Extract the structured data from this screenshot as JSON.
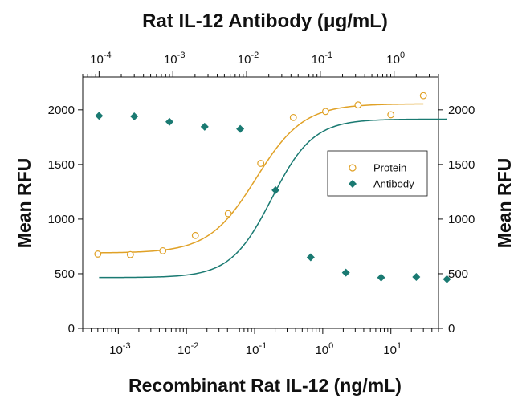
{
  "chart_data": {
    "type": "scatter",
    "title": "Rat IL-12 Antibody (μg/mL)",
    "xlabel": "Recombinant Rat IL-12 (ng/mL)",
    "ylabel": "Mean RFU",
    "ylabel_right": "Mean RFU",
    "x_scale": "log",
    "xlim": [
      0.0003,
      50
    ],
    "ylim": [
      0,
      2300
    ],
    "x2_scale": "log",
    "x2lim": [
      6e-05,
      4
    ],
    "grid": false,
    "legend_position": "right-center",
    "y_ticks": [
      0,
      500,
      1000,
      1500,
      2000
    ],
    "x_ticks": [
      {
        "value": 0.001,
        "base": "10",
        "exp": "-3"
      },
      {
        "value": 0.01,
        "base": "10",
        "exp": "-2"
      },
      {
        "value": 0.1,
        "base": "10",
        "exp": "-1"
      },
      {
        "value": 1,
        "base": "10",
        "exp": "0"
      },
      {
        "value": 10,
        "base": "10",
        "exp": "1"
      }
    ],
    "x2_ticks": [
      {
        "value": 0.0001,
        "base": "10",
        "exp": "-4"
      },
      {
        "value": 0.001,
        "base": "10",
        "exp": "-3"
      },
      {
        "value": 0.01,
        "base": "10",
        "exp": "-2"
      },
      {
        "value": 0.1,
        "base": "10",
        "exp": "-1"
      },
      {
        "value": 1,
        "base": "10",
        "exp": "0"
      }
    ],
    "series": [
      {
        "name": "Protein",
        "axis": "bottom",
        "marker": "open-circle",
        "color": "#E0A126",
        "x": [
          0.0005,
          0.0015,
          0.0045,
          0.0135,
          0.041,
          0.123,
          0.37,
          1.1,
          3.3,
          10,
          30
        ],
        "y": [
          680,
          675,
          710,
          850,
          1050,
          1510,
          1930,
          1985,
          2045,
          1955,
          2130
        ],
        "fit": {
          "bottom": 690,
          "top": 2055,
          "ec50": 0.105,
          "hill": 1.25
        }
      },
      {
        "name": "Antibody",
        "axis": "top",
        "marker": "filled-diamond",
        "color": "#1A7A72",
        "x": [
          0.0001,
          0.0003,
          0.0009,
          0.0027,
          0.0082,
          0.0247,
          0.074,
          0.222,
          0.667,
          2.0
        ],
        "y": [
          1945,
          1940,
          1890,
          1845,
          1825,
          1265,
          650,
          510,
          465,
          470
        ],
        "x_last": 5.2,
        "y_last": 450,
        "fit": {
          "bottom": 465,
          "top": 1915,
          "ec50": 0.022,
          "hill": 1.55
        }
      }
    ]
  }
}
